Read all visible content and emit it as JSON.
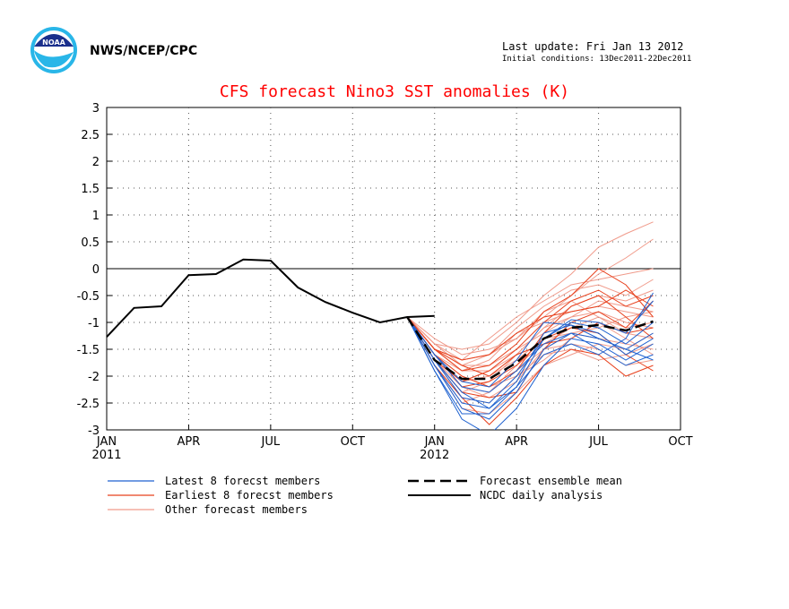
{
  "header": {
    "org_text": "NWS/NCEP/CPC",
    "last_update": "Last update: Fri Jan 13 2012",
    "initial_conditions": "Initial conditions: 13Dec2011-22Dec2011",
    "logo_text": "NOAA",
    "title_color": "#ff0000"
  },
  "legend": {
    "latest": "Latest 8 forecst members",
    "earliest": "Earliest 8 forecst members",
    "other": "Other forecast members",
    "mean": "Forecast ensemble mean",
    "ncdc": "NCDC daily analysis"
  },
  "colors": {
    "latest": "#1f62d0",
    "earliest": "#e8401c",
    "other": "#f09a8a",
    "analysis": "#000000"
  },
  "chart_data": {
    "type": "line",
    "title": "CFS forecast Nino3 SST anomalies (K)",
    "xlabel": "",
    "ylabel": "",
    "ylim": [
      -3,
      3
    ],
    "yticks": [
      "3",
      "2.5",
      "2",
      "1.5",
      "1",
      "0.5",
      "0",
      "-0.5",
      "-1",
      "-1.5",
      "-2",
      "-2.5",
      "-3"
    ],
    "xticks": [
      {
        "label": "JAN",
        "sub": "2011",
        "month": 0
      },
      {
        "label": "APR",
        "sub": "",
        "month": 3
      },
      {
        "label": "JUL",
        "sub": "",
        "month": 6
      },
      {
        "label": "OCT",
        "sub": "",
        "month": 9
      },
      {
        "label": "JAN",
        "sub": "2012",
        "month": 12
      },
      {
        "label": "APR",
        "sub": "",
        "month": 15
      },
      {
        "label": "JUL",
        "sub": "",
        "month": 18
      },
      {
        "label": "OCT",
        "sub": "",
        "month": 21
      }
    ],
    "xlim_months": [
      0,
      21
    ],
    "grid": true,
    "zero_line": true,
    "ncdc_analysis": {
      "months": [
        0,
        1,
        2,
        3,
        4,
        5,
        6,
        7,
        8,
        9,
        10,
        11,
        12
      ],
      "values": [
        -1.27,
        -0.73,
        -0.7,
        -0.12,
        -0.1,
        0.17,
        0.15,
        -0.35,
        -0.62,
        -0.82,
        -1.0,
        -0.9,
        -0.88
      ]
    },
    "forecast_ensemble_mean": {
      "months": [
        11,
        12,
        13,
        14,
        15,
        16,
        17,
        18,
        19,
        20
      ],
      "values": [
        -0.9,
        -1.7,
        -2.05,
        -2.05,
        -1.75,
        -1.3,
        -1.1,
        -1.05,
        -1.15,
        -0.98
      ]
    },
    "forecast_months": [
      11,
      12,
      13,
      14,
      15,
      16,
      17,
      18,
      19,
      20
    ],
    "latest_members": [
      [
        -0.9,
        -1.8,
        -2.6,
        -2.8,
        -2.3,
        -1.5,
        -1.2,
        -1.3,
        -1.5,
        -1.2
      ],
      [
        -0.9,
        -1.7,
        -2.4,
        -2.5,
        -2.0,
        -1.3,
        -1.0,
        -1.1,
        -1.4,
        -1.0
      ],
      [
        -0.9,
        -1.9,
        -2.8,
        -3.1,
        -2.6,
        -1.8,
        -1.3,
        -1.4,
        -1.7,
        -1.4
      ],
      [
        -0.9,
        -1.6,
        -2.2,
        -2.3,
        -1.9,
        -1.4,
        -1.2,
        -1.5,
        -1.8,
        -1.6
      ],
      [
        -0.9,
        -1.8,
        -2.5,
        -2.6,
        -2.1,
        -1.2,
        -1.05,
        -1.2,
        -1.6,
        -1.3
      ],
      [
        -0.9,
        -1.7,
        -2.3,
        -2.6,
        -2.2,
        -1.6,
        -1.4,
        -1.6,
        -1.3,
        -0.45
      ],
      [
        -0.9,
        -1.9,
        -2.7,
        -2.7,
        -2.2,
        -1.3,
        -0.95,
        -1.0,
        -1.2,
        -0.6
      ],
      [
        -0.9,
        -1.6,
        -2.1,
        -2.2,
        -1.7,
        -1.0,
        -1.05,
        -1.3,
        -1.5,
        -1.7
      ]
    ],
    "earliest_members": [
      [
        -0.9,
        -1.5,
        -1.9,
        -1.8,
        -1.4,
        -0.8,
        -0.5,
        0.0,
        -0.3,
        -0.9
      ],
      [
        -0.9,
        -1.6,
        -2.0,
        -2.2,
        -1.9,
        -1.2,
        -0.7,
        -0.5,
        -0.9,
        -1.3
      ],
      [
        -0.9,
        -1.7,
        -2.3,
        -2.4,
        -2.3,
        -1.5,
        -1.0,
        -0.8,
        -1.1,
        -0.6
      ],
      [
        -0.9,
        -1.5,
        -1.7,
        -1.6,
        -1.2,
        -0.9,
        -0.8,
        -0.7,
        -0.4,
        -0.7
      ],
      [
        -0.9,
        -1.8,
        -2.4,
        -2.9,
        -2.4,
        -1.8,
        -1.5,
        -1.6,
        -2.0,
        -1.8
      ],
      [
        -0.9,
        -1.6,
        -2.2,
        -2.1,
        -1.8,
        -1.3,
        -1.1,
        -1.2,
        -1.6,
        -1.9
      ],
      [
        -0.9,
        -1.7,
        -2.1,
        -1.9,
        -1.5,
        -1.0,
        -0.6,
        -0.4,
        -0.7,
        -0.5
      ],
      [
        -0.9,
        -1.5,
        -1.8,
        -2.0,
        -1.6,
        -1.4,
        -1.3,
        -1.0,
        -1.2,
        -1.1
      ]
    ],
    "other_members": [
      [
        -0.9,
        -1.4,
        -1.5,
        -1.4,
        -1.0,
        -0.5,
        -0.1,
        0.4,
        0.65,
        0.87
      ],
      [
        -0.9,
        -1.3,
        -1.6,
        -1.5,
        -1.3,
        -0.9,
        -0.5,
        -0.1,
        0.2,
        0.55
      ],
      [
        -0.9,
        -1.5,
        -1.8,
        -1.6,
        -1.1,
        -0.7,
        -0.4,
        -0.3,
        -0.5,
        -0.2
      ],
      [
        -0.9,
        -1.6,
        -1.9,
        -1.9,
        -1.6,
        -1.1,
        -0.9,
        -0.6,
        -0.7,
        -0.8
      ],
      [
        -0.9,
        -1.7,
        -2.2,
        -2.3,
        -1.8,
        -1.4,
        -1.1,
        -0.9,
        -1.2,
        -1.3
      ],
      [
        -0.9,
        -1.5,
        -1.7,
        -1.3,
        -0.9,
        -0.6,
        -0.3,
        -0.2,
        -0.1,
        0.0
      ],
      [
        -0.9,
        -1.6,
        -2.1,
        -2.0,
        -1.7,
        -1.3,
        -1.2,
        -1.3,
        -1.4,
        -1.5
      ],
      [
        -0.9,
        -1.7,
        -2.4,
        -2.5,
        -2.0,
        -1.6,
        -1.5,
        -1.7,
        -1.6,
        -1.4
      ],
      [
        -0.9,
        -1.4,
        -1.8,
        -1.8,
        -1.5,
        -1.2,
        -0.9,
        -0.8,
        -1.0,
        -1.1
      ],
      [
        -0.9,
        -1.8,
        -2.5,
        -2.3,
        -1.9,
        -1.5,
        -1.2,
        -1.1,
        -0.9,
        -0.8
      ],
      [
        -0.9,
        -1.6,
        -2.0,
        -2.2,
        -2.0,
        -1.7,
        -1.3,
        -1.0,
        -1.3,
        -1.6
      ],
      [
        -0.9,
        -1.5,
        -1.9,
        -1.7,
        -1.2,
        -1.0,
        -0.8,
        -0.7,
        -0.8,
        -0.9
      ],
      [
        -0.9,
        -1.7,
        -2.3,
        -2.1,
        -1.6,
        -1.1,
        -0.7,
        -0.5,
        -0.6,
        -0.4
      ],
      [
        -0.9,
        -1.6,
        -2.2,
        -2.4,
        -2.1,
        -1.5,
        -1.4,
        -1.5,
        -1.8,
        -1.7
      ],
      [
        -0.9,
        -1.8,
        -2.6,
        -2.7,
        -2.3,
        -1.8,
        -1.6,
        -1.4,
        -1.5,
        -1.2
      ],
      [
        -0.9,
        -1.4,
        -1.7,
        -1.6,
        -1.3,
        -0.8,
        -0.6,
        -0.9,
        -1.1,
        -1.0
      ]
    ]
  }
}
